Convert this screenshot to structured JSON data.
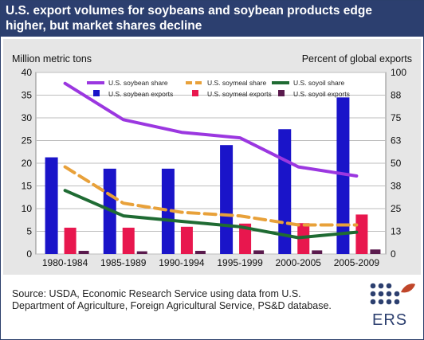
{
  "header": {
    "title": "U.S. export volumes for soybeans and soybean products edge higher, but market shares decline"
  },
  "source_text": "Source: USDA, Economic Research Service using data from U.S. Department of Agriculture, Foreign Agricultural Service, PS&D database.",
  "logo": {
    "text": "ERS",
    "dot_color": "#2c3f6f",
    "leaf_color": "#c0462a"
  },
  "chart_data": {
    "type": "bar",
    "categories": [
      "1980-1984",
      "1985-1989",
      "1990-1994",
      "1995-1999",
      "2000-2005",
      "2005-2009"
    ],
    "ylabel_left": "Million metric tons",
    "ylabel_right": "Percent of global exports",
    "ylim_left": [
      0,
      40
    ],
    "ylim_right": [
      0,
      100
    ],
    "yticks_left": [
      "0",
      "5",
      "10",
      "15",
      "20",
      "25",
      "30",
      "35",
      "40"
    ],
    "yticks_right": [
      "0",
      "13",
      "25",
      "38",
      "50",
      "63",
      "75",
      "88",
      "100"
    ],
    "grid": true,
    "legend_position": "top",
    "bar_series": [
      {
        "name": "U.S. soybean exports",
        "values": [
          21.3,
          18.8,
          18.8,
          24.0,
          27.5,
          34.5
        ],
        "color": "#1a14c9"
      },
      {
        "name": "U.S. soymeal exports",
        "values": [
          5.8,
          5.8,
          6.0,
          6.7,
          6.8,
          8.7
        ],
        "color": "#e8174e"
      },
      {
        "name": "U.S. soyoil exports",
        "values": [
          0.7,
          0.6,
          0.7,
          0.8,
          0.8,
          1.0
        ],
        "color": "#5a1a4d"
      }
    ],
    "line_series": [
      {
        "name": "U.S. soybean share",
        "axis": "right",
        "values": [
          94,
          74,
          67,
          64,
          48,
          43
        ],
        "color": "#9b37e0",
        "dash": false
      },
      {
        "name": "U.S. soymeal share",
        "axis": "right",
        "values": [
          48,
          28,
          23,
          21,
          16,
          16
        ],
        "color": "#e8a13a",
        "dash": true
      },
      {
        "name": "U.S. soyoil share",
        "axis": "right",
        "values": [
          35,
          21,
          18,
          15,
          9,
          12
        ],
        "color": "#1f6b33",
        "dash": false
      }
    ]
  }
}
